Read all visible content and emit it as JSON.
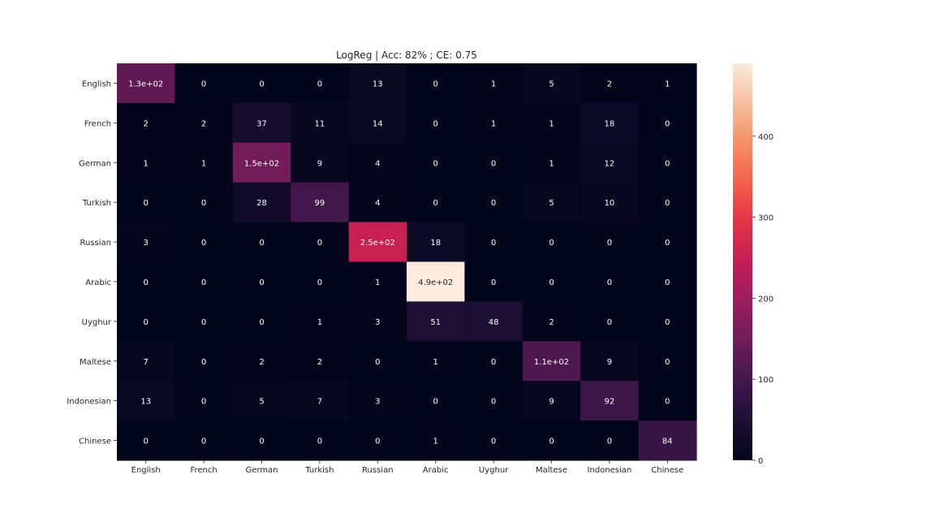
{
  "chart_data": {
    "type": "heatmap",
    "title": "LogReg | Acc: 82% ; CE: 0.75",
    "xlabel": "",
    "ylabel": "",
    "row_labels": [
      "English",
      "French",
      "German",
      "Turkish",
      "Russian",
      "Arabic",
      "Uyghur",
      "Maltese",
      "Indonesian",
      "Chinese"
    ],
    "col_labels": [
      "English",
      "French",
      "German",
      "Turkish",
      "Russian",
      "Arabic",
      "Uyghur",
      "Maltese",
      "Indonesian",
      "Chinese"
    ],
    "values": [
      [
        130,
        0,
        0,
        0,
        13,
        0,
        1,
        5,
        2,
        1
      ],
      [
        2,
        2,
        37,
        11,
        14,
        0,
        1,
        1,
        18,
        0
      ],
      [
        1,
        1,
        150,
        9,
        4,
        0,
        0,
        1,
        12,
        0
      ],
      [
        0,
        0,
        28,
        99,
        4,
        0,
        0,
        5,
        10,
        0
      ],
      [
        3,
        0,
        0,
        0,
        250,
        18,
        0,
        0,
        0,
        0
      ],
      [
        0,
        0,
        0,
        0,
        1,
        490,
        0,
        0,
        0,
        0
      ],
      [
        0,
        0,
        0,
        1,
        3,
        51,
        48,
        2,
        0,
        0
      ],
      [
        7,
        0,
        2,
        2,
        0,
        1,
        0,
        110,
        9,
        0
      ],
      [
        13,
        0,
        5,
        7,
        3,
        0,
        0,
        9,
        92,
        0
      ],
      [
        0,
        0,
        0,
        0,
        0,
        1,
        0,
        0,
        0,
        84
      ]
    ],
    "cell_labels": [
      [
        "1.3e+02",
        "0",
        "0",
        "0",
        "13",
        "0",
        "1",
        "5",
        "2",
        "1"
      ],
      [
        "2",
        "2",
        "37",
        "11",
        "14",
        "0",
        "1",
        "1",
        "18",
        "0"
      ],
      [
        "1",
        "1",
        "1.5e+02",
        "9",
        "4",
        "0",
        "0",
        "1",
        "12",
        "0"
      ],
      [
        "0",
        "0",
        "28",
        "99",
        "4",
        "0",
        "0",
        "5",
        "10",
        "0"
      ],
      [
        "3",
        "0",
        "0",
        "0",
        "2.5e+02",
        "18",
        "0",
        "0",
        "0",
        "0"
      ],
      [
        "0",
        "0",
        "0",
        "0",
        "1",
        "4.9e+02",
        "0",
        "0",
        "0",
        "0"
      ],
      [
        "0",
        "0",
        "0",
        "1",
        "3",
        "51",
        "48",
        "2",
        "0",
        "0"
      ],
      [
        "7",
        "0",
        "2",
        "2",
        "0",
        "1",
        "0",
        "1.1e+02",
        "9",
        "0"
      ],
      [
        "13",
        "0",
        "5",
        "7",
        "3",
        "0",
        "0",
        "9",
        "92",
        "0"
      ],
      [
        "0",
        "0",
        "0",
        "0",
        "0",
        "1",
        "0",
        "0",
        "0",
        "84"
      ]
    ],
    "colorbar": {
      "range": [
        0,
        490
      ],
      "ticks": [
        0,
        100,
        200,
        300,
        400
      ],
      "tick_labels": [
        "0",
        "100",
        "200",
        "300",
        "400"
      ]
    },
    "colormap": "rocket",
    "grid": false
  }
}
